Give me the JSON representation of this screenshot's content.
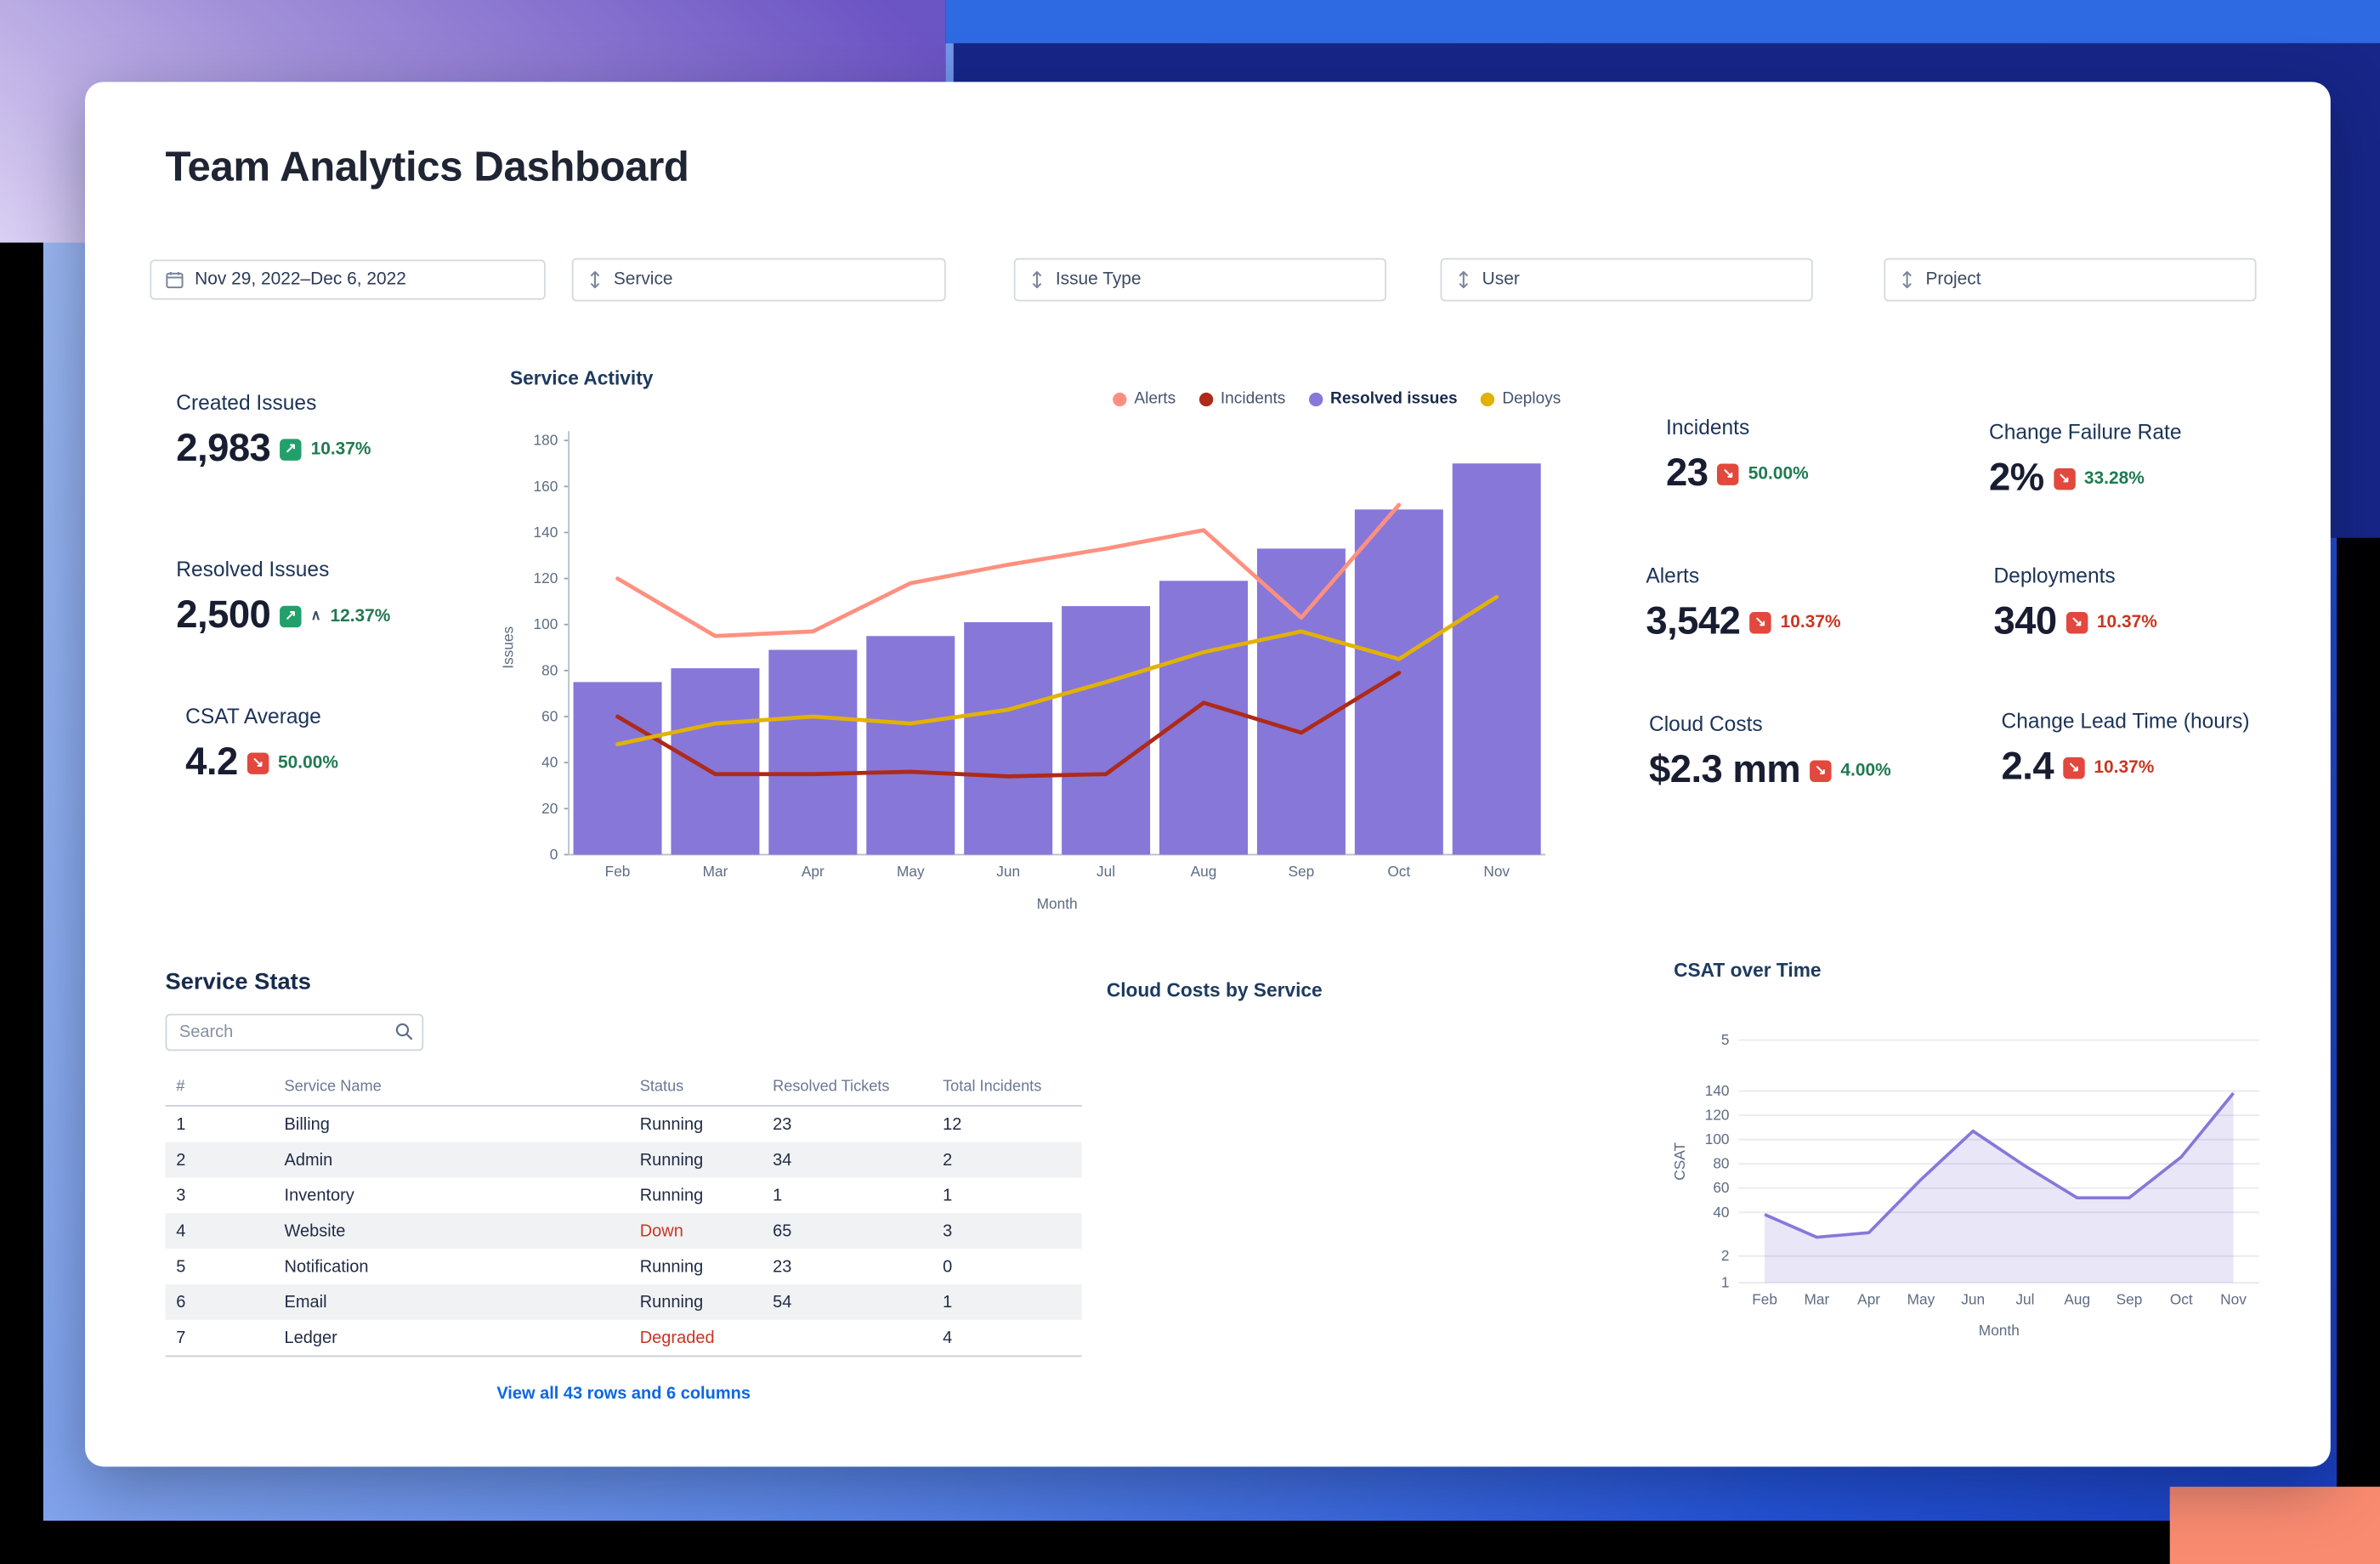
{
  "app": {
    "title": "Team Analytics Dashboard"
  },
  "filters": {
    "date_range": "Nov 29, 2022–Dec 6, 2022",
    "dropdowns": [
      "Service",
      "Issue Type",
      "User",
      "Project"
    ]
  },
  "colors": {
    "accent_purple": "#8777d9",
    "alerts_line": "#ff9080",
    "incidents_line": "#ae2a19",
    "deploys_line": "#e2b203",
    "positive_text": "#1f7a50",
    "negative_text": "#ca3521",
    "badge_green": "#22a06b",
    "badge_red": "#e2483d",
    "link_blue": "#0c66e4"
  },
  "kpis": [
    {
      "id": "created-issues",
      "label": "Created Issues",
      "value": "2,983",
      "delta": "10.37%",
      "badge": "green",
      "delta_color": "green",
      "caret": false
    },
    {
      "id": "resolved-issues",
      "label": "Resolved Issues",
      "value": "2,500",
      "delta": "12.37%",
      "badge": "green",
      "delta_color": "green",
      "caret": true
    },
    {
      "id": "csat-average",
      "label": "CSAT Average",
      "value": "4.2",
      "delta": "50.00%",
      "badge": "red",
      "delta_color": "green",
      "caret": false
    },
    {
      "id": "incidents",
      "label": "Incidents",
      "value": "23",
      "delta": "50.00%",
      "badge": "red",
      "delta_color": "green",
      "caret": false
    },
    {
      "id": "change-failure-rate",
      "label": "Change Failure Rate",
      "value": "2%",
      "delta": "33.28%",
      "badge": "red",
      "delta_color": "green",
      "caret": false
    },
    {
      "id": "alerts",
      "label": "Alerts",
      "value": "3,542",
      "delta": "10.37%",
      "badge": "red",
      "delta_color": "red",
      "caret": false
    },
    {
      "id": "deployments",
      "label": "Deployments",
      "value": "340",
      "delta": "10.37%",
      "badge": "red",
      "delta_color": "red",
      "caret": false
    },
    {
      "id": "cloud-costs",
      "label": "Cloud Costs",
      "value": "$2.3 mm",
      "delta": "4.00%",
      "badge": "red",
      "delta_color": "green",
      "caret": false
    },
    {
      "id": "change-lead-time",
      "label": "Change Lead Time (hours)",
      "value": "2.4",
      "delta": "10.37%",
      "badge": "red",
      "delta_color": "red",
      "caret": false
    }
  ],
  "chart_data": [
    {
      "type": "bar",
      "title": "Service Activity",
      "categories": [
        "Feb",
        "Mar",
        "Apr",
        "May",
        "Jun",
        "Jul",
        "Aug",
        "Sep",
        "Oct",
        "Nov"
      ],
      "xlabel": "Month",
      "ylabel": "Issues",
      "ylim": [
        0,
        180
      ],
      "yticks": [
        0,
        20,
        40,
        60,
        80,
        100,
        120,
        140,
        160,
        180
      ],
      "legend_position": "top-right",
      "series": [
        {
          "name": "Resolved issues",
          "kind": "bar",
          "color": "#8777d9",
          "values": [
            75,
            81,
            89,
            95,
            101,
            108,
            119,
            133,
            150,
            170
          ]
        },
        {
          "name": "Alerts",
          "kind": "line",
          "color": "#ff9080",
          "values": [
            120,
            95,
            97,
            118,
            126,
            133,
            141,
            103,
            152,
            null
          ]
        },
        {
          "name": "Incidents",
          "kind": "line",
          "color": "#ae2a19",
          "values": [
            60,
            35,
            35,
            36,
            34,
            35,
            66,
            53,
            79,
            null
          ]
        },
        {
          "name": "Deploys",
          "kind": "line",
          "color": "#e2b203",
          "values": [
            48,
            57,
            60,
            57,
            63,
            75,
            88,
            97,
            85,
            112
          ]
        }
      ],
      "legend": [
        {
          "label": "Alerts",
          "color": "#ff9080",
          "bold": false
        },
        {
          "label": "Incidents",
          "color": "#ae2a19",
          "bold": false
        },
        {
          "label": "Resolved issues",
          "color": "#8777d9",
          "bold": true
        },
        {
          "label": "Deploys",
          "color": "#e2b203",
          "bold": false
        }
      ]
    },
    {
      "type": "area",
      "title": "CSAT over Time",
      "categories": [
        "Feb",
        "Mar",
        "Apr",
        "May",
        "Jun",
        "Jul",
        "Aug",
        "Sep",
        "Oct",
        "Nov"
      ],
      "xlabel": "Month",
      "ylabel": "CSAT",
      "values": [
        45,
        30,
        33,
        68,
        100,
        77,
        56,
        56,
        83,
        125
      ],
      "color": "#8777d9",
      "fill": "rgba(135,119,217,0.18)",
      "ylim": [
        0,
        160
      ],
      "grid": true,
      "yticks": [
        {
          "label": "5",
          "pos": 0.0
        },
        {
          "label": "140",
          "pos": 0.21
        },
        {
          "label": "120",
          "pos": 0.31
        },
        {
          "label": "100",
          "pos": 0.41
        },
        {
          "label": "80",
          "pos": 0.51
        },
        {
          "label": "60",
          "pos": 0.61
        },
        {
          "label": "40",
          "pos": 0.71
        },
        {
          "label": "2",
          "pos": 0.89
        },
        {
          "label": "1",
          "pos": 1.0
        }
      ]
    },
    {
      "type": "bar",
      "title": "Cloud Costs by Service",
      "categories": [],
      "values": []
    }
  ],
  "service_stats": {
    "title": "Service Stats",
    "search_placeholder": "Search",
    "columns": [
      "#",
      "Service Name",
      "Status",
      "Resolved Tickets",
      "Total Incidents"
    ],
    "rows": [
      [
        "1",
        "Billing",
        "Running",
        "23",
        "12"
      ],
      [
        "2",
        "Admin",
        "Running",
        "34",
        "2"
      ],
      [
        "3",
        "Inventory",
        "Running",
        "1",
        "1"
      ],
      [
        "4",
        "Website",
        "Down",
        "65",
        "3"
      ],
      [
        "5",
        "Notification",
        "Running",
        "23",
        "0"
      ],
      [
        "6",
        "Email",
        "Running",
        "54",
        "1"
      ],
      [
        "7",
        "Ledger",
        "Degraded",
        "",
        "4"
      ]
    ],
    "footer_link": "View all 43 rows and 6 columns"
  }
}
